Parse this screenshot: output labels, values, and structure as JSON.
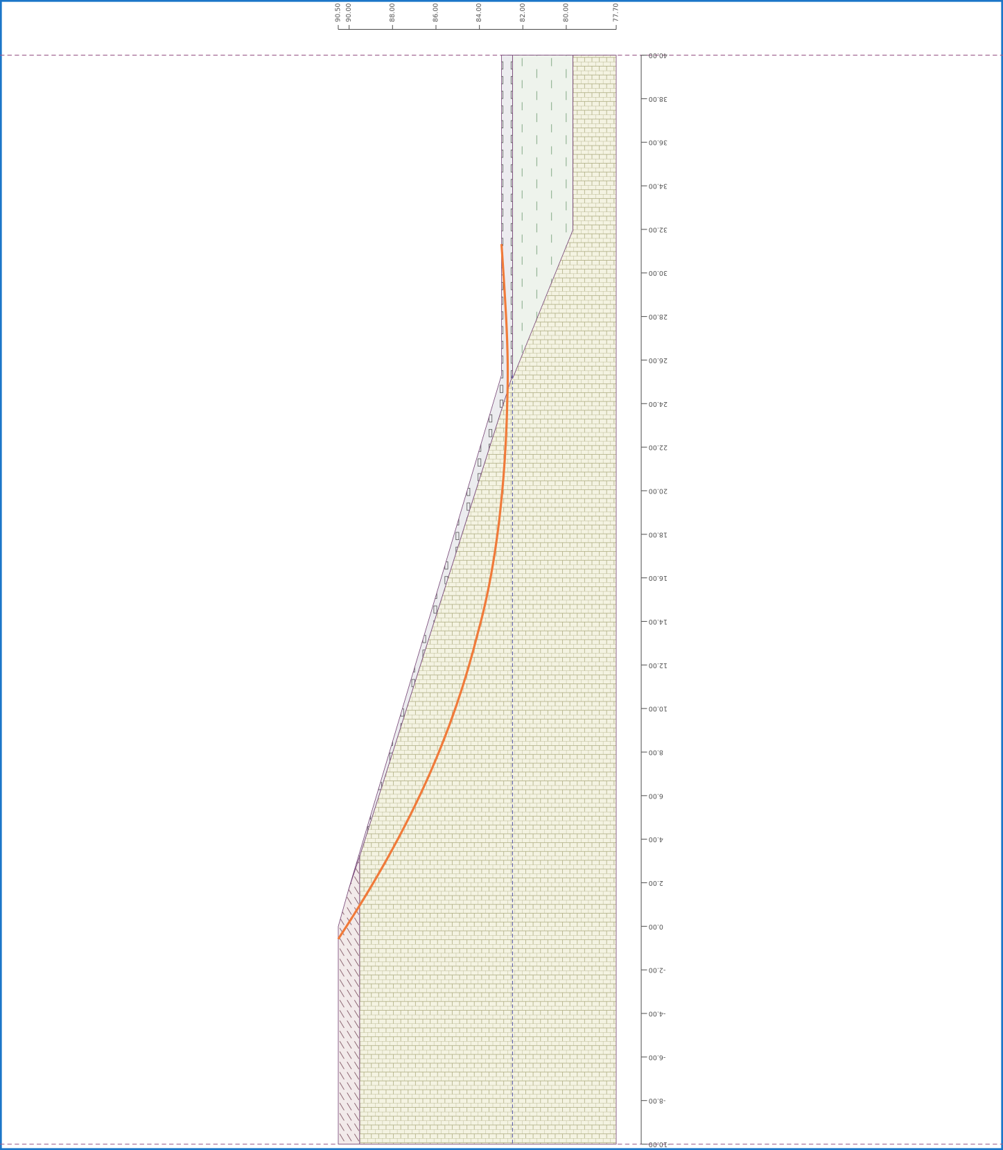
{
  "x_axis": {
    "ticks": [
      {
        "value": 90.5,
        "label": "90.50"
      },
      {
        "value": 90,
        "label": "90.00"
      },
      {
        "value": 88,
        "label": "88.00"
      },
      {
        "value": 86,
        "label": "86.00"
      },
      {
        "value": 84,
        "label": "84.00"
      },
      {
        "value": 82,
        "label": "82.00"
      },
      {
        "value": 80,
        "label": "80.00"
      },
      {
        "value": 77.7,
        "label": "77.70"
      }
    ]
  },
  "y_axis": {
    "ticks": [
      {
        "value": 40,
        "label": "40.00"
      },
      {
        "value": 38,
        "label": "38.00"
      },
      {
        "value": 36,
        "label": "36.00"
      },
      {
        "value": 34,
        "label": "34.00"
      },
      {
        "value": 32,
        "label": "32.00"
      },
      {
        "value": 30,
        "label": "30.00"
      },
      {
        "value": 28,
        "label": "28.00"
      },
      {
        "value": 26,
        "label": "26.00"
      },
      {
        "value": 24,
        "label": "24.00"
      },
      {
        "value": 22,
        "label": "22.00"
      },
      {
        "value": 20,
        "label": "20.00"
      },
      {
        "value": 18,
        "label": "18.00"
      },
      {
        "value": 16,
        "label": "16.00"
      },
      {
        "value": 14,
        "label": "14.00"
      },
      {
        "value": 12,
        "label": "12.00"
      },
      {
        "value": 10,
        "label": "10.00"
      },
      {
        "value": 8,
        "label": "8.00"
      },
      {
        "value": 6,
        "label": "6.00"
      },
      {
        "value": 4,
        "label": "4.00"
      },
      {
        "value": 2,
        "label": "2.00"
      },
      {
        "value": 0,
        "label": "0.00"
      },
      {
        "value": -2,
        "label": "-2.00"
      },
      {
        "value": -4,
        "label": "-4.00"
      },
      {
        "value": -6,
        "label": "-6.00"
      },
      {
        "value": -8,
        "label": "-8.00"
      },
      {
        "value": -10,
        "label": "-10.00"
      }
    ]
  }
}
